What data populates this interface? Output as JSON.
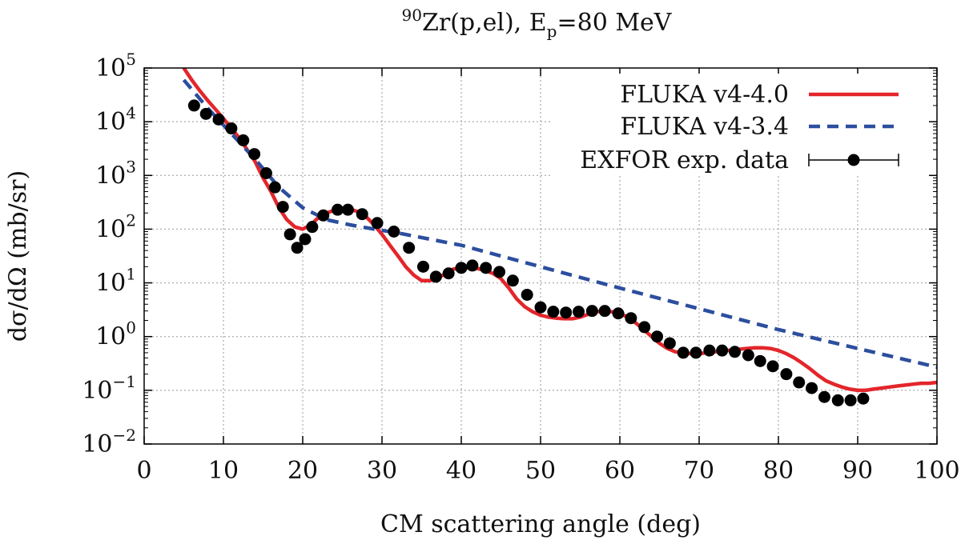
{
  "chart_data": {
    "type": "line",
    "title": {
      "sup": "90",
      "base": "Zr(p,el), E",
      "sub": "p",
      "tail": "=80 MeV"
    },
    "xlabel": "CM scattering angle (deg)",
    "ylabel": "dσ/dΩ (mb/sr)",
    "xlim": [
      0,
      100
    ],
    "ylim_log10": [
      -2,
      5
    ],
    "y_scale": "log",
    "grid": true,
    "legend_position": "top-right",
    "x_ticks": [
      "0",
      "10",
      "20",
      "30",
      "40",
      "50",
      "60",
      "70",
      "80",
      "90",
      "100"
    ],
    "y_ticks": [
      {
        "base": "10",
        "exp": "−2"
      },
      {
        "base": "10",
        "exp": "−1"
      },
      {
        "base": "10",
        "exp": "0"
      },
      {
        "base": "10",
        "exp": "1"
      },
      {
        "base": "10",
        "exp": "2"
      },
      {
        "base": "10",
        "exp": "3"
      },
      {
        "base": "10",
        "exp": "4"
      },
      {
        "base": "10",
        "exp": "5"
      }
    ],
    "series": [
      {
        "name": "FLUKA v4-4.0",
        "color": "#e3262b",
        "style": "solid",
        "x": [
          5,
          6,
          7,
          8,
          9,
          10,
          11,
          12,
          13,
          14,
          15,
          16,
          17,
          18,
          19,
          20,
          21,
          22,
          23,
          24,
          25,
          26,
          27,
          28,
          29,
          30,
          31,
          32,
          33,
          34,
          35,
          36,
          37,
          38,
          39,
          40,
          41,
          42,
          43,
          44,
          45,
          46,
          47,
          48,
          49,
          50,
          51,
          52,
          53,
          54,
          55,
          56,
          57,
          58,
          59,
          60,
          61,
          62,
          63,
          64,
          65,
          66,
          67,
          68,
          69,
          70,
          71,
          72,
          73,
          74,
          75,
          76,
          77,
          78,
          79,
          80,
          81,
          82,
          83,
          84,
          85,
          86,
          87,
          88,
          89,
          90,
          91,
          92,
          93,
          94,
          95,
          96,
          97,
          98,
          99,
          100
        ],
        "y": [
          100000,
          60000,
          38000,
          25000,
          17000,
          11500,
          7500,
          5000,
          3000,
          1800,
          900,
          500,
          250,
          150,
          110,
          100,
          120,
          165,
          200,
          225,
          240,
          235,
          210,
          170,
          120,
          80,
          50,
          32,
          20,
          14,
          11,
          11,
          12,
          15,
          18,
          19,
          19,
          18.5,
          17,
          15,
          12,
          8,
          5,
          3.6,
          2.9,
          2.5,
          2.3,
          2.2,
          2.15,
          2.15,
          2.3,
          2.6,
          2.9,
          3,
          2.9,
          2.7,
          2.3,
          1.8,
          1.35,
          1,
          0.75,
          0.6,
          0.52,
          0.5,
          0.48,
          0.48,
          0.5,
          0.52,
          0.54,
          0.56,
          0.58,
          0.6,
          0.62,
          0.62,
          0.6,
          0.55,
          0.48,
          0.4,
          0.32,
          0.25,
          0.19,
          0.15,
          0.13,
          0.115,
          0.105,
          0.1,
          0.1,
          0.105,
          0.11,
          0.115,
          0.12,
          0.125,
          0.13,
          0.135,
          0.135,
          0.14
        ]
      },
      {
        "name": "FLUKA v4-3.4",
        "color": "#2c4e9e",
        "style": "dashed",
        "x": [
          5,
          8,
          11,
          14,
          17,
          20,
          23,
          26,
          29,
          32,
          40,
          50,
          60,
          70,
          80,
          90,
          100
        ],
        "y": [
          60000,
          18000,
          6000,
          2000,
          600,
          250,
          150,
          120,
          100,
          85,
          50,
          20,
          8,
          3.3,
          1.35,
          0.6,
          0.27
        ]
      },
      {
        "name": "EXFOR exp. data",
        "color": "#000000",
        "style": "points",
        "x": [
          6.3,
          7.8,
          9.4,
          11.0,
          12.5,
          13.9,
          15.4,
          16.5,
          17.5,
          18.4,
          19.3,
          20.3,
          21.2,
          22.6,
          24.4,
          25.7,
          27.5,
          29.4,
          31.5,
          33.4,
          35.2,
          36.8,
          38.4,
          40.0,
          41.4,
          43.1,
          44.8,
          46.5,
          48.3,
          50.0,
          51.6,
          53.2,
          54.8,
          56.5,
          58.1,
          59.8,
          61.4,
          63.1,
          64.7,
          66.3,
          68.0,
          69.6,
          71.3,
          72.9,
          74.5,
          76.2,
          77.7,
          79.3,
          81.0,
          82.6,
          84.2,
          85.8,
          87.5,
          89.1,
          90.7
        ],
        "y": [
          20000,
          14000,
          11000,
          7500,
          4500,
          2500,
          1100,
          600,
          260,
          80,
          45,
          65,
          110,
          180,
          230,
          230,
          190,
          130,
          90,
          45,
          20,
          13,
          15,
          19,
          21,
          19,
          16,
          11,
          6,
          3.5,
          2.9,
          2.8,
          2.9,
          3,
          3,
          2.7,
          2.2,
          1.5,
          1,
          0.75,
          0.5,
          0.5,
          0.55,
          0.55,
          0.52,
          0.45,
          0.35,
          0.28,
          0.2,
          0.14,
          0.11,
          0.075,
          0.065,
          0.065,
          0.07
        ]
      }
    ]
  }
}
